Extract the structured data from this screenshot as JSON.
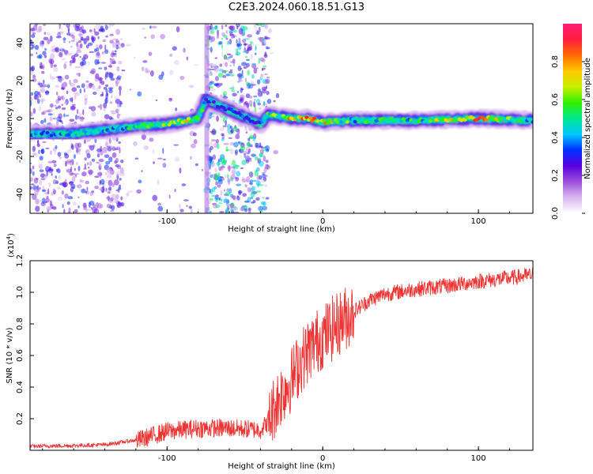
{
  "title": "C2E3.2024.060.18.51.G13",
  "colorbar": {
    "label": "Normalized spectral amplitude",
    "ticks": [
      "0.0",
      "0.2",
      "0.4",
      "0.6",
      "0.8"
    ],
    "stops": [
      "#ffffff",
      "#d9b8f0",
      "#9b4fd9",
      "#5a00e0",
      "#0030ff",
      "#00c8ff",
      "#00e890",
      "#30f000",
      "#c8f000",
      "#ffc800",
      "#ff6a00",
      "#ff1e3c",
      "#ff1e78"
    ]
  },
  "chart_data": [
    {
      "type": "heatmap",
      "title": "",
      "xlabel": "Height of straight line (km)",
      "ylabel": "Frequency (Hz)",
      "xlim": [
        -188,
        135
      ],
      "ylim": [
        -50,
        50
      ],
      "x_ticks": [
        "-100",
        "0",
        "100"
      ],
      "y_ticks": [
        "-40",
        "-20",
        "0",
        "20",
        "40"
      ],
      "ridge": {
        "description": "dominant spectral ridge (frequency in Hz vs height in km)",
        "x": [
          -188,
          -160,
          -140,
          -120,
          -100,
          -80,
          -75,
          -40,
          -35,
          -20,
          -10,
          0,
          20,
          60,
          100,
          135
        ],
        "y": [
          -8,
          -8,
          -6,
          -4,
          -3,
          0,
          10,
          -3,
          2,
          0,
          0,
          -2,
          -1,
          -1,
          0,
          -1
        ],
        "amplitude": [
          0.45,
          0.5,
          0.45,
          0.55,
          0.7,
          0.75,
          0.4,
          0.35,
          0.6,
          0.8,
          0.85,
          0.8,
          0.55,
          0.55,
          0.9,
          0.45
        ]
      }
    },
    {
      "type": "line",
      "title": "",
      "xlabel": "Height of straight line (km)",
      "ylabel": "SNR (10 * v/v)",
      "y_multiplier": "(x10",
      "y_multiplier_exp": "4",
      "y_multiplier_close": ")",
      "xlim": [
        -188,
        135
      ],
      "ylim": [
        0,
        12000
      ],
      "x_ticks": [
        "-100",
        "0",
        "100"
      ],
      "y_ticks": [
        "0.2",
        "0.4",
        "0.6",
        "0.8",
        "1.0",
        "1.2"
      ],
      "color": "#ee3333",
      "series": [
        {
          "name": "",
          "x": [
            -188,
            -160,
            -140,
            -120,
            -100,
            -80,
            -60,
            -40,
            -35,
            -30,
            -25,
            -20,
            -15,
            -10,
            -5,
            0,
            10,
            20,
            30,
            40,
            60,
            80,
            100,
            120,
            135
          ],
          "y": [
            200,
            250,
            300,
            600,
            1200,
            1400,
            1400,
            1300,
            1800,
            3000,
            3800,
            4500,
            5500,
            6200,
            6800,
            7200,
            8000,
            8800,
            9500,
            9900,
            10200,
            10400,
            10700,
            10900,
            11100
          ]
        }
      ]
    }
  ]
}
